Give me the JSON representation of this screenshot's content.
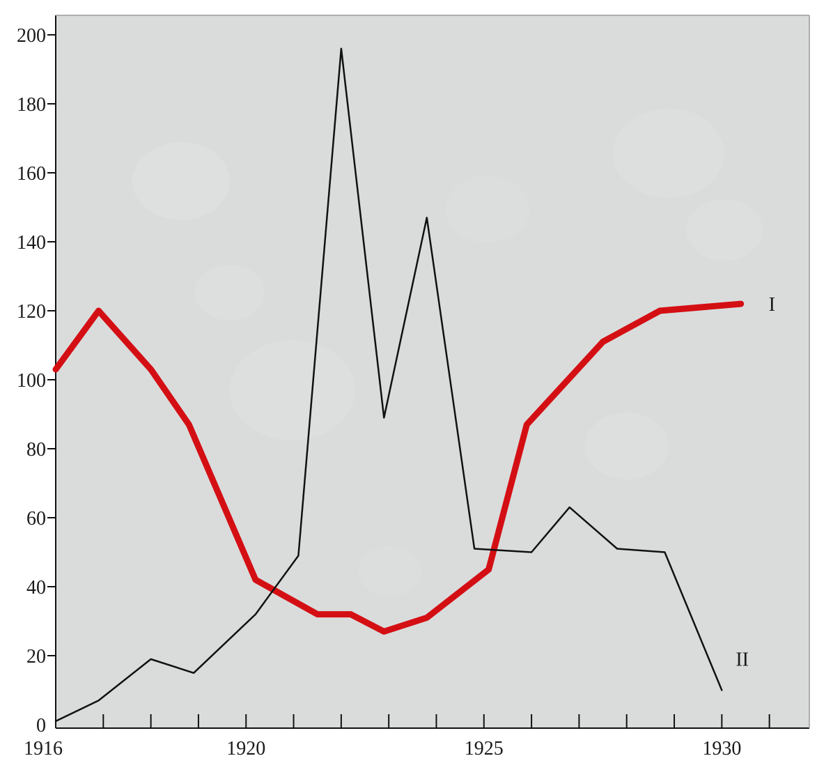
{
  "chart_data": {
    "type": "line",
    "x_ticks": [
      "1916",
      "1920",
      "1925",
      "1930"
    ],
    "y_ticks": [
      "0",
      "20",
      "40",
      "60",
      "80",
      "100",
      "120",
      "140",
      "160",
      "180",
      "200"
    ],
    "ylim": [
      0,
      200
    ],
    "grid": false,
    "background": "#dadcdc",
    "series": [
      {
        "name": "I",
        "color": "#d40f14",
        "points": [
          [
            1916.0,
            103
          ],
          [
            1916.9,
            120
          ],
          [
            1918.0,
            103
          ],
          [
            1918.8,
            87
          ],
          [
            1920.2,
            42
          ],
          [
            1921.5,
            32
          ],
          [
            1922.2,
            32
          ],
          [
            1922.9,
            27
          ],
          [
            1923.8,
            31
          ],
          [
            1925.1,
            45
          ],
          [
            1925.9,
            87
          ],
          [
            1927.5,
            111
          ],
          [
            1928.7,
            120
          ],
          [
            1930.4,
            122
          ]
        ]
      },
      {
        "name": "II",
        "color": "#111111",
        "points": [
          [
            1916.0,
            1
          ],
          [
            1916.9,
            7
          ],
          [
            1918.0,
            19
          ],
          [
            1918.9,
            15
          ],
          [
            1920.2,
            32
          ],
          [
            1921.1,
            49
          ],
          [
            1922.0,
            196
          ],
          [
            1922.9,
            89
          ],
          [
            1923.8,
            147
          ],
          [
            1924.8,
            51
          ],
          [
            1926.0,
            50
          ],
          [
            1926.8,
            63
          ],
          [
            1927.8,
            51
          ],
          [
            1928.8,
            50
          ],
          [
            1930.0,
            10
          ]
        ]
      }
    ]
  }
}
